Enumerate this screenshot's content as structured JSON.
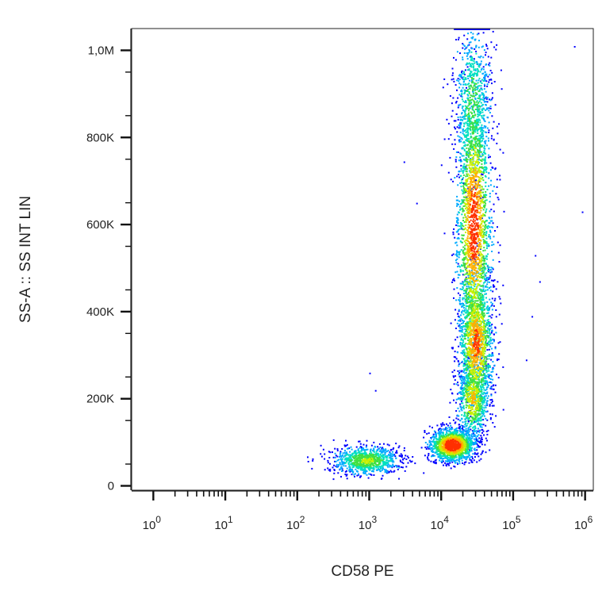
{
  "chart_data": {
    "type": "scatter",
    "subtype": "flow-cytometry-density-dot-plot",
    "title": "",
    "xlabel": "CD58 PE",
    "ylabel": "SS-A :: SS INT LIN",
    "x_scale": "log",
    "y_scale": "linear",
    "xlim": [
      0.5,
      1300000
    ],
    "ylim": [
      -10000,
      1050000
    ],
    "x_tick_labels": [
      {
        "base": "10",
        "exp": "0",
        "value": 1
      },
      {
        "base": "10",
        "exp": "1",
        "value": 10
      },
      {
        "base": "10",
        "exp": "2",
        "value": 100
      },
      {
        "base": "10",
        "exp": "3",
        "value": 1000
      },
      {
        "base": "10",
        "exp": "4",
        "value": 10000
      },
      {
        "base": "10",
        "exp": "5",
        "value": 100000
      },
      {
        "base": "10",
        "exp": "6",
        "value": 1000000
      }
    ],
    "y_ticks": [
      {
        "label": "0",
        "value": 0
      },
      {
        "label": "200K",
        "value": 200000
      },
      {
        "label": "400K",
        "value": 400000
      },
      {
        "label": "600K",
        "value": 600000
      },
      {
        "label": "800K",
        "value": 800000
      },
      {
        "label": "1,0M",
        "value": 1000000
      }
    ],
    "grid": false,
    "legend": "none",
    "colormap": [
      "#0000ff",
      "#00aaff",
      "#00e0c0",
      "#40e040",
      "#c8f000",
      "#ffb000",
      "#ff3000"
    ],
    "populations": [
      {
        "name": "low-SS shoulder",
        "x_center": 900,
        "y_center": 60000,
        "density": 0.55
      },
      {
        "name": "main bright cluster",
        "x_center": 14000,
        "y_center": 95000,
        "density": 1.0
      },
      {
        "name": "rising arm",
        "x_center": 27000,
        "y_center": 200000,
        "density": 0.7
      },
      {
        "name": "mid band",
        "x_center": 30000,
        "y_center": 330000,
        "density": 0.85
      },
      {
        "name": "upper band",
        "x_center": 28000,
        "y_center": 600000,
        "density": 0.9
      },
      {
        "name": "top band",
        "x_center": 27000,
        "y_center": 880000,
        "density": 0.45
      }
    ],
    "saturation_line": {
      "y": 1050000,
      "x_from": 15000,
      "x_to": 48000
    },
    "outliers": [
      [
        700000,
        1010000
      ],
      [
        900000,
        630000
      ],
      [
        3000,
        745000
      ],
      [
        4500,
        650000
      ],
      [
        200000,
        530000
      ],
      [
        230000,
        470000
      ],
      [
        180000,
        390000
      ],
      [
        150000,
        290000
      ],
      [
        1000,
        260000
      ],
      [
        1200,
        220000
      ]
    ]
  }
}
